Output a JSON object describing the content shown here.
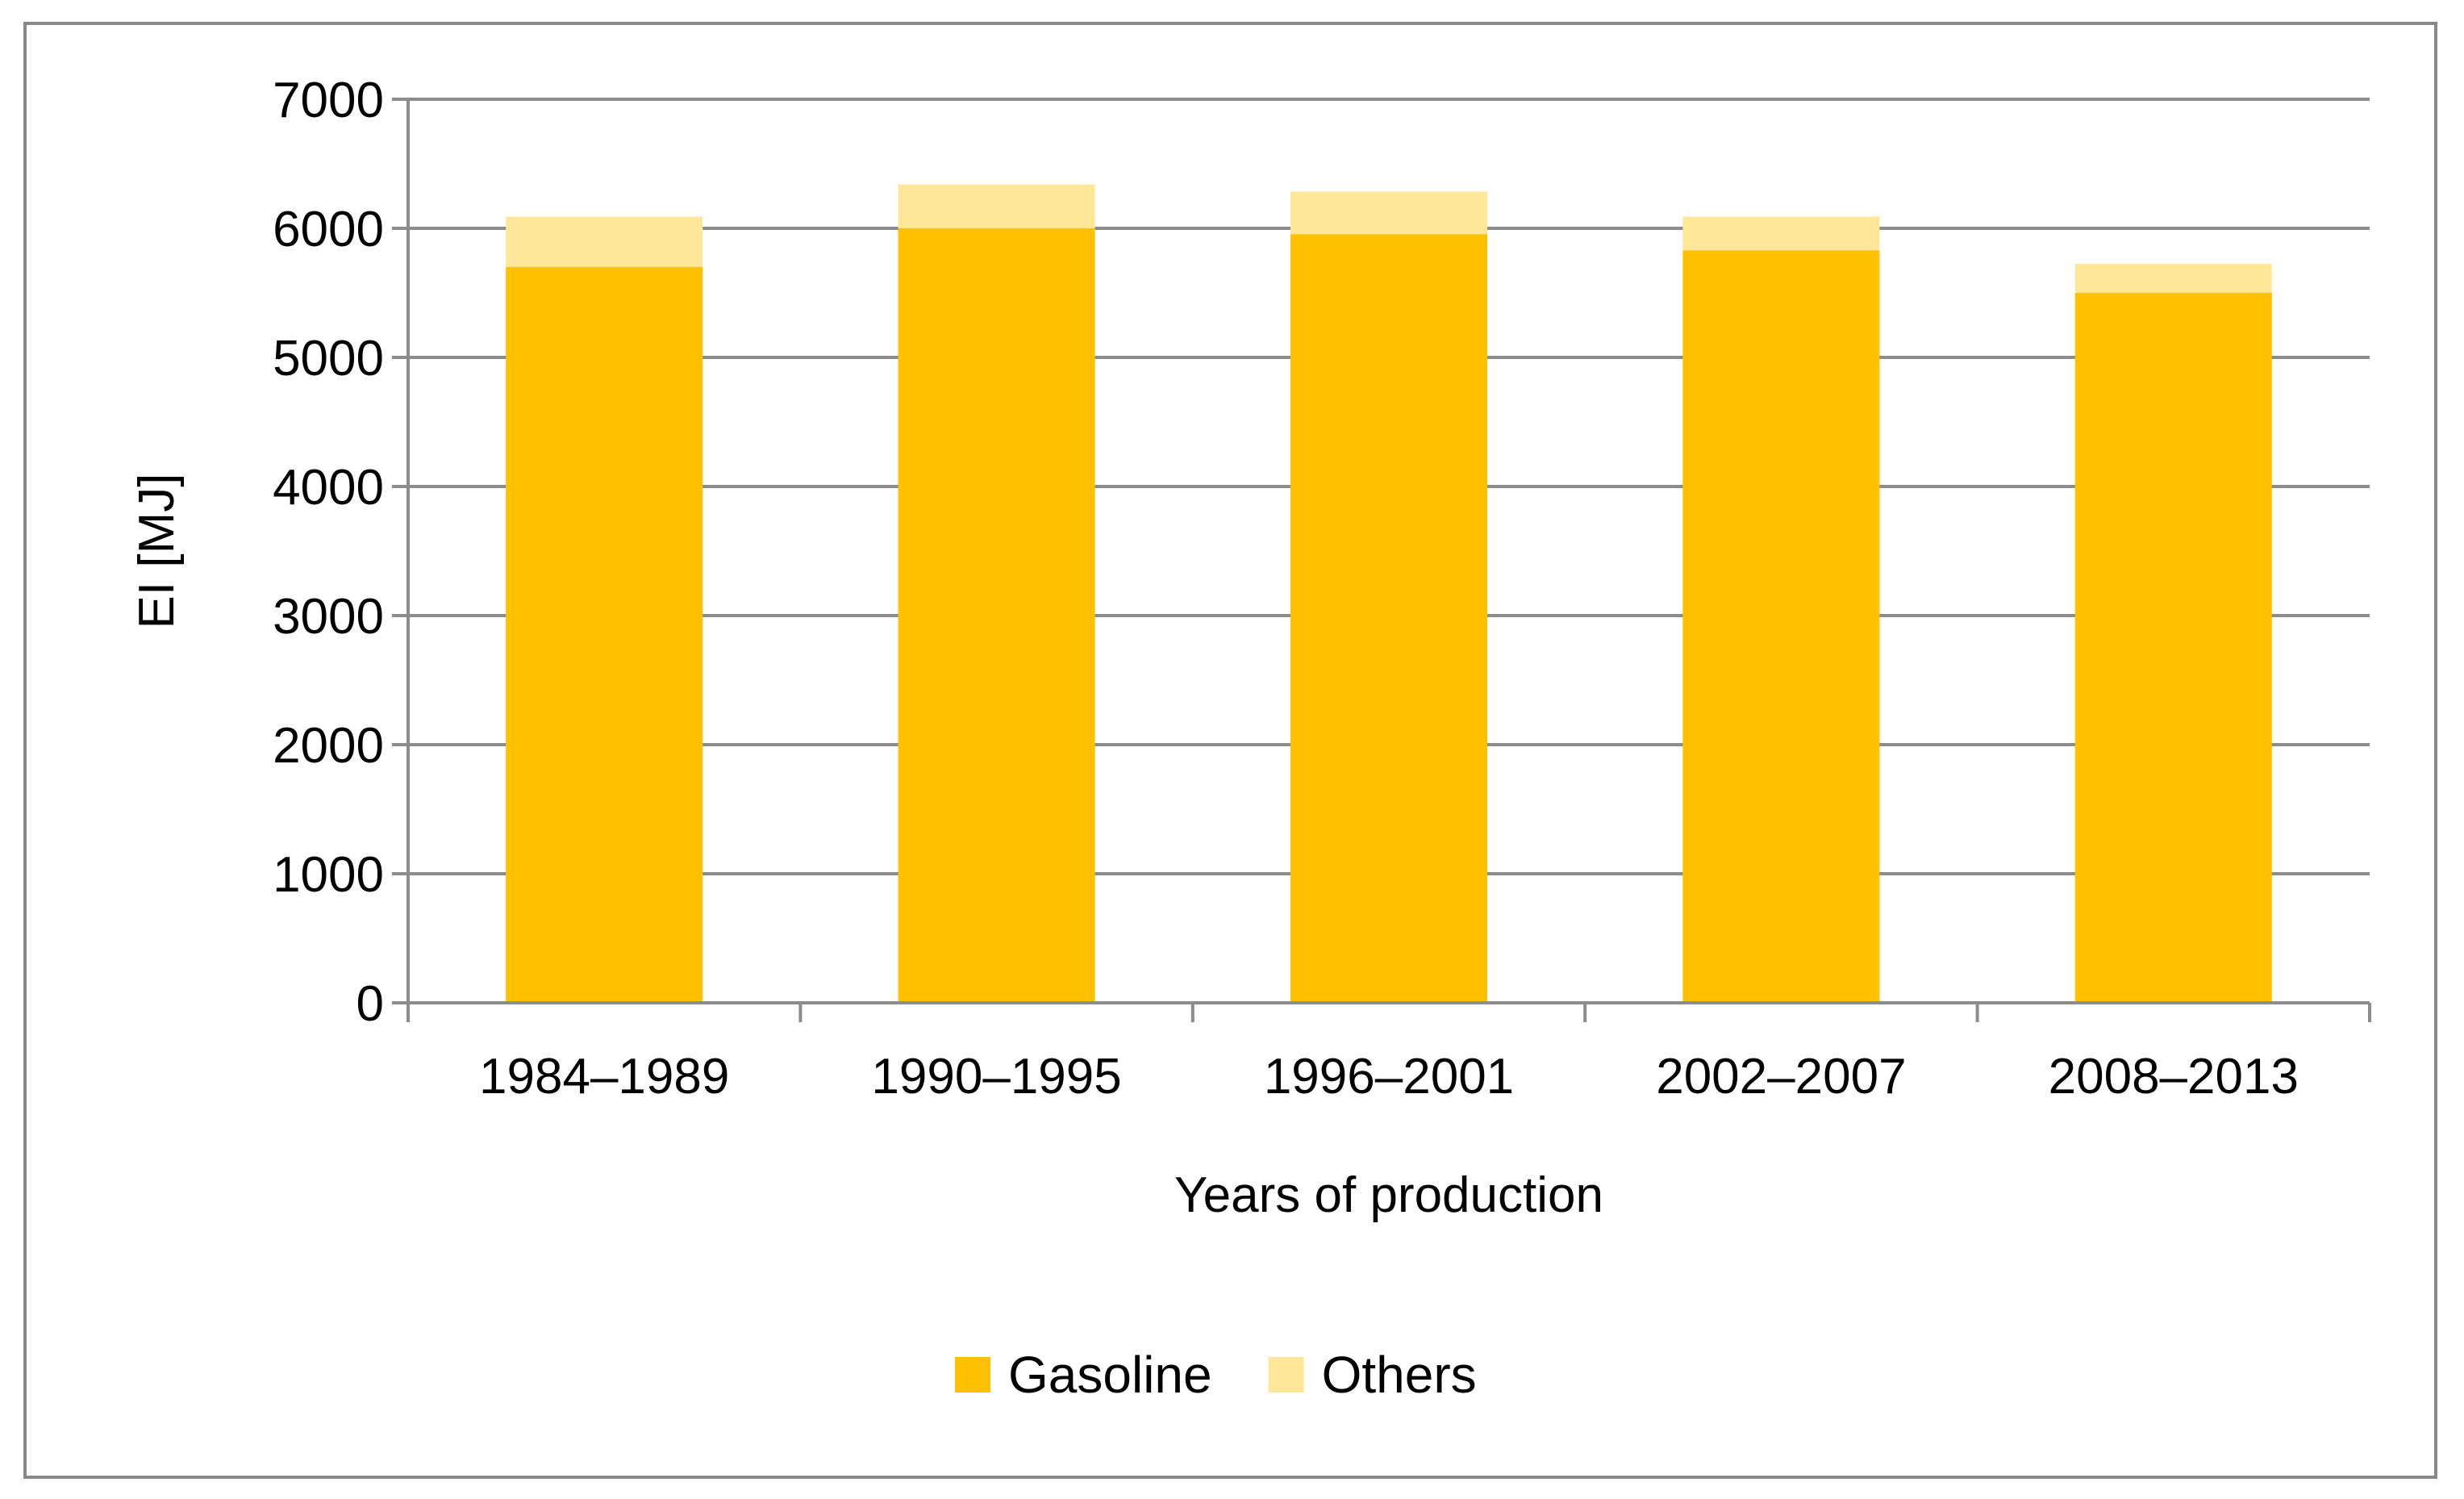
{
  "chart_data": {
    "type": "bar",
    "stacked": true,
    "title": "",
    "xlabel": "Years of production",
    "ylabel": "EI [MJ]",
    "ylim": [
      0,
      7000
    ],
    "yticks": [
      0,
      1000,
      2000,
      3000,
      4000,
      5000,
      6000,
      7000
    ],
    "grid": true,
    "legend_position": "bottom",
    "categories": [
      "1984–1989",
      "1990–1995",
      "1996–2001",
      "2002–2007",
      "2008–2013"
    ],
    "series": [
      {
        "name": "Gasoline",
        "color": "#FFC000",
        "values": [
          5700,
          6000,
          5955,
          5830,
          5500
        ]
      },
      {
        "name": "Others",
        "color": "#FFE699",
        "values": [
          390,
          340,
          330,
          260,
          225
        ]
      }
    ]
  }
}
